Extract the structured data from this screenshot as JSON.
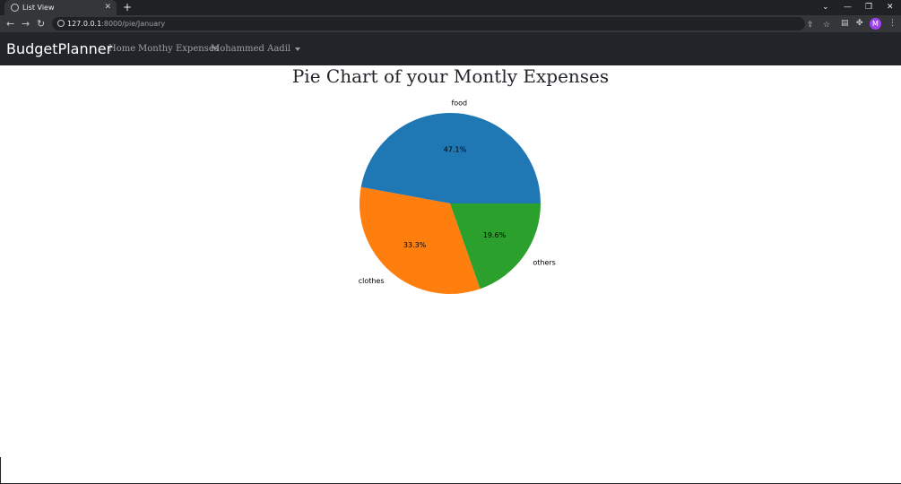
{
  "browser": {
    "tab_title": "List View",
    "url_host": "127.0.0.1",
    "url_rest": ":8000/pie/January",
    "avatar_letter": "M",
    "avatar_color": "#a142f4"
  },
  "nav": {
    "brand": "BudgetPlanner",
    "links": [
      "Home",
      "Monthy Expenses",
      "Mohammed Aadil"
    ]
  },
  "page": {
    "title": "Pie Chart of your Montly Expenses"
  },
  "chart_data": {
    "type": "pie",
    "categories": [
      "food",
      "clothes",
      "others"
    ],
    "values": [
      47.1,
      33.3,
      19.6
    ],
    "value_labels": [
      "47.1%",
      "33.3%",
      "19.6%"
    ],
    "colors": [
      "#1f77b4",
      "#ff7f0e",
      "#2ca02c"
    ],
    "start_angle_deg": 0,
    "direction": "counterclockwise"
  }
}
